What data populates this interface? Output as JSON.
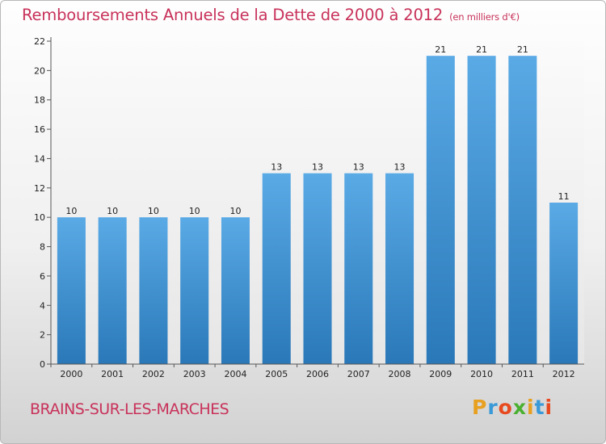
{
  "chart_data": {
    "type": "bar",
    "title": "Remboursements Annuels de la Dette de 2000 à 2012",
    "subtitle": "(en milliers d'€)",
    "categories": [
      "2000",
      "2001",
      "2002",
      "2003",
      "2004",
      "2005",
      "2006",
      "2007",
      "2008",
      "2009",
      "2010",
      "2011",
      "2012"
    ],
    "values": [
      10,
      10,
      10,
      10,
      10,
      13,
      13,
      13,
      13,
      21,
      21,
      21,
      11
    ],
    "ylim": [
      0,
      22
    ],
    "yticks": [
      0,
      2,
      4,
      6,
      8,
      10,
      12,
      14,
      16,
      18,
      20,
      22
    ],
    "grid": false,
    "legend": "none",
    "bar_color_top": "#5aaae6",
    "bar_color_bottom": "#2a78b8"
  },
  "footer": {
    "commune": "BRAINS-SUR-LES-MARCHES",
    "logo_letters": [
      "P",
      "r",
      "o",
      "x",
      "i",
      "t",
      "i"
    ],
    "logo_colors": [
      "#e8a020",
      "#3a9ad8",
      "#e84a20",
      "#4ab030",
      "#e8a020",
      "#3a9ad8",
      "#e84a20"
    ]
  }
}
